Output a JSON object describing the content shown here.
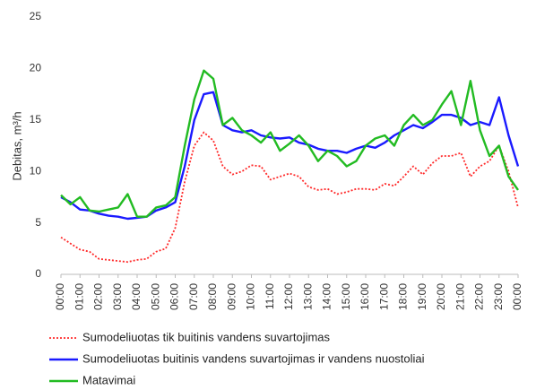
{
  "chart_data": {
    "type": "line",
    "ylabel": "Debitas, m³/h",
    "categories": [
      "00:00",
      null,
      "01:00",
      null,
      "02:00",
      null,
      "03:00",
      null,
      "04:00",
      null,
      "05:00",
      null,
      "06:00",
      null,
      "07:00",
      null,
      "08:00",
      null,
      "09:00",
      null,
      "10:00",
      null,
      "11:00",
      null,
      "12:00",
      null,
      "13:00",
      null,
      "14:00",
      null,
      "15:00",
      null,
      "16:00",
      null,
      "17:00",
      null,
      "18:00",
      null,
      "19:00",
      null,
      "20:00",
      null,
      "21:00",
      null,
      "22:00",
      null,
      "23:00",
      null,
      "00:00"
    ],
    "ylim": [
      0,
      25
    ],
    "yticks": [
      0,
      5,
      10,
      15,
      20,
      25
    ],
    "grid": false,
    "legend": "bottom",
    "series": [
      {
        "name": "Sumodeliuotas tik buitinis vandens suvartojimas",
        "color": "#ff2a2a",
        "dash": "dotted",
        "values": [
          3.6,
          3.0,
          2.4,
          2.2,
          1.5,
          1.4,
          1.3,
          1.2,
          1.4,
          1.5,
          2.2,
          2.5,
          4.5,
          9,
          12.5,
          13.8,
          13,
          10.5,
          9.7,
          10,
          10.6,
          10.5,
          9.2,
          9.5,
          9.8,
          9.5,
          8.5,
          8.2,
          8.3,
          7.8,
          8,
          8.3,
          8.3,
          8.2,
          8.8,
          8.6,
          9.5,
          10.5,
          9.7,
          10.8,
          11.5,
          11.5,
          11.8,
          9.5,
          10.5,
          11,
          12.5,
          10,
          6.5
        ]
      },
      {
        "name": "Sumodeliuotas buitinis vandens suvartojimas ir vandens nuostoliai",
        "color": "#1a1aff",
        "dash": "solid",
        "values": [
          7.5,
          7,
          6.3,
          6.2,
          5.9,
          5.7,
          5.6,
          5.4,
          5.5,
          5.6,
          6.2,
          6.5,
          7,
          10.5,
          15,
          17.5,
          17.7,
          14.5,
          14,
          13.8,
          14,
          13.5,
          13.3,
          13.2,
          13.3,
          12.8,
          12.6,
          12.2,
          12,
          12,
          11.8,
          12.2,
          12.5,
          12.3,
          12.8,
          13.5,
          14,
          14.5,
          14.2,
          14.8,
          15.5,
          15.5,
          15.2,
          14.5,
          14.8,
          14.5,
          17.2,
          13.5,
          10.5
        ]
      },
      {
        "name": "Matavimai",
        "color": "#22bb22",
        "dash": "solid",
        "values": [
          7.7,
          6.8,
          7.5,
          6.2,
          6.1,
          6.3,
          6.5,
          7.8,
          5.6,
          5.6,
          6.5,
          6.7,
          7.5,
          12.5,
          17,
          19.8,
          19,
          14.5,
          15.2,
          14,
          13.5,
          12.8,
          13.8,
          12,
          12.7,
          13.5,
          12.5,
          11,
          12,
          11.5,
          10.5,
          11,
          12.5,
          13.2,
          13.5,
          12.5,
          14.5,
          15.5,
          14.5,
          15,
          16.5,
          17.8,
          14.5,
          18.8,
          14,
          11.5,
          12.5,
          9.5,
          8.2
        ]
      }
    ]
  }
}
